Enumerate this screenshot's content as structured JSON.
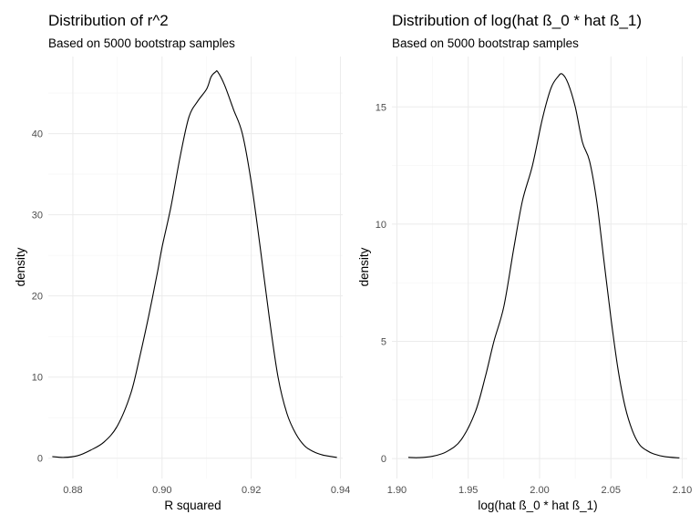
{
  "chart_data": [
    {
      "type": "line",
      "title": "Distribution of r^2",
      "subtitle": "Based on 5000 bootstrap samples",
      "xlabel": "R squared",
      "ylabel": "density",
      "xlim": [
        0.8745,
        0.9405
      ],
      "ylim": [
        -2.5,
        49.5
      ],
      "x_ticks": [
        0.88,
        0.9,
        0.92,
        0.94
      ],
      "x_tick_labels": [
        "0.88",
        "0.90",
        "0.92",
        "0.94"
      ],
      "y_ticks": [
        0,
        10,
        20,
        30,
        40
      ],
      "y_tick_labels": [
        "0",
        "10",
        "20",
        "30",
        "40"
      ],
      "grid": true,
      "series": [
        {
          "x": [
            0.8754,
            0.878,
            0.881,
            0.884,
            0.887,
            0.89,
            0.893,
            0.895,
            0.897,
            0.899,
            0.9,
            0.902,
            0.904,
            0.906,
            0.908,
            0.91,
            0.911,
            0.912,
            0.9125,
            0.914,
            0.916,
            0.918,
            0.92,
            0.922,
            0.924,
            0.926,
            0.928,
            0.93,
            0.932,
            0.934,
            0.936,
            0.938,
            0.9392
          ],
          "y": [
            0.2,
            0.1,
            0.3,
            1.0,
            2.0,
            4.0,
            8.0,
            12.5,
            17.5,
            23.0,
            26.0,
            31.0,
            37.0,
            42.0,
            44.0,
            45.5,
            47.0,
            47.6,
            47.6,
            46.0,
            43.0,
            40.0,
            34.0,
            26.0,
            17.5,
            10.0,
            5.5,
            3.0,
            1.5,
            0.8,
            0.4,
            0.2,
            0.1
          ]
        }
      ]
    },
    {
      "type": "line",
      "title": "Distribution of log(hat ß_0 * hat ß_1)",
      "subtitle": "Based on 5000 bootstrap samples",
      "xlabel": "log(hat ß_0 * hat ß_1)",
      "ylabel": "density",
      "xlim": [
        1.8965,
        2.1035
      ],
      "ylim": [
        -0.85,
        17.15
      ],
      "x_ticks": [
        1.9,
        1.95,
        2.0,
        2.05,
        2.1
      ],
      "x_tick_labels": [
        "1.90",
        "1.95",
        "2.00",
        "2.05",
        "2.10"
      ],
      "y_ticks": [
        0,
        5,
        10,
        15
      ],
      "y_tick_labels": [
        "0",
        "5",
        "10",
        "15"
      ],
      "grid": true,
      "series": [
        {
          "x": [
            1.908,
            1.915,
            1.925,
            1.935,
            1.945,
            1.955,
            1.962,
            1.968,
            1.975,
            1.982,
            1.988,
            1.995,
            2.002,
            2.008,
            2.013,
            2.016,
            2.02,
            2.025,
            2.03,
            2.035,
            2.04,
            2.045,
            2.05,
            2.055,
            2.06,
            2.065,
            2.07,
            2.075,
            2.08,
            2.088,
            2.098
          ],
          "y": [
            0.05,
            0.04,
            0.1,
            0.3,
            0.8,
            2.0,
            3.5,
            5.0,
            6.5,
            9.0,
            11.0,
            12.5,
            14.5,
            15.8,
            16.3,
            16.4,
            16.0,
            15.0,
            13.5,
            12.7,
            11.0,
            8.5,
            6.0,
            3.8,
            2.2,
            1.2,
            0.6,
            0.35,
            0.2,
            0.08,
            0.03
          ]
        }
      ]
    }
  ]
}
